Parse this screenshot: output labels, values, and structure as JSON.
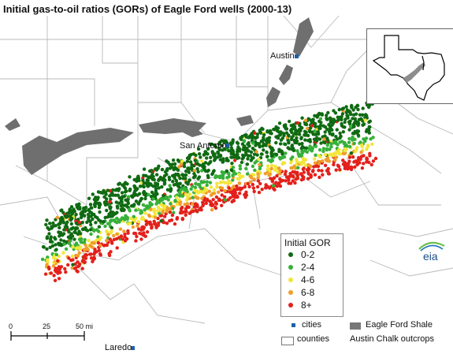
{
  "title": "Initial gas-to-oil ratios (GORs) of Eagle Ford wells (2000-13)",
  "cities": [
    {
      "name": "Austin"
    },
    {
      "name": "San Antonio"
    },
    {
      "name": "Laredo"
    }
  ],
  "legend": {
    "title": "Initial GOR",
    "classes": [
      {
        "label": "0-2",
        "color": "#0f6a12"
      },
      {
        "label": "2-4",
        "color": "#36b03a"
      },
      {
        "label": "4-6",
        "color": "#f2e63a"
      },
      {
        "label": "6-8",
        "color": "#ef9e2a"
      },
      {
        "label": "8+",
        "color": "#e3201b"
      }
    ]
  },
  "key": {
    "cities_label": "cities",
    "counties_label": "counties",
    "shale_label": "Eagle Ford Shale",
    "outcrop_label": "Austin Chalk outcrops",
    "city_color": "#1f5fa8",
    "shale_color": "#777777"
  },
  "scale_bar": {
    "ticks": [
      "0",
      "25",
      "50 mi"
    ]
  },
  "logo": "eia"
}
